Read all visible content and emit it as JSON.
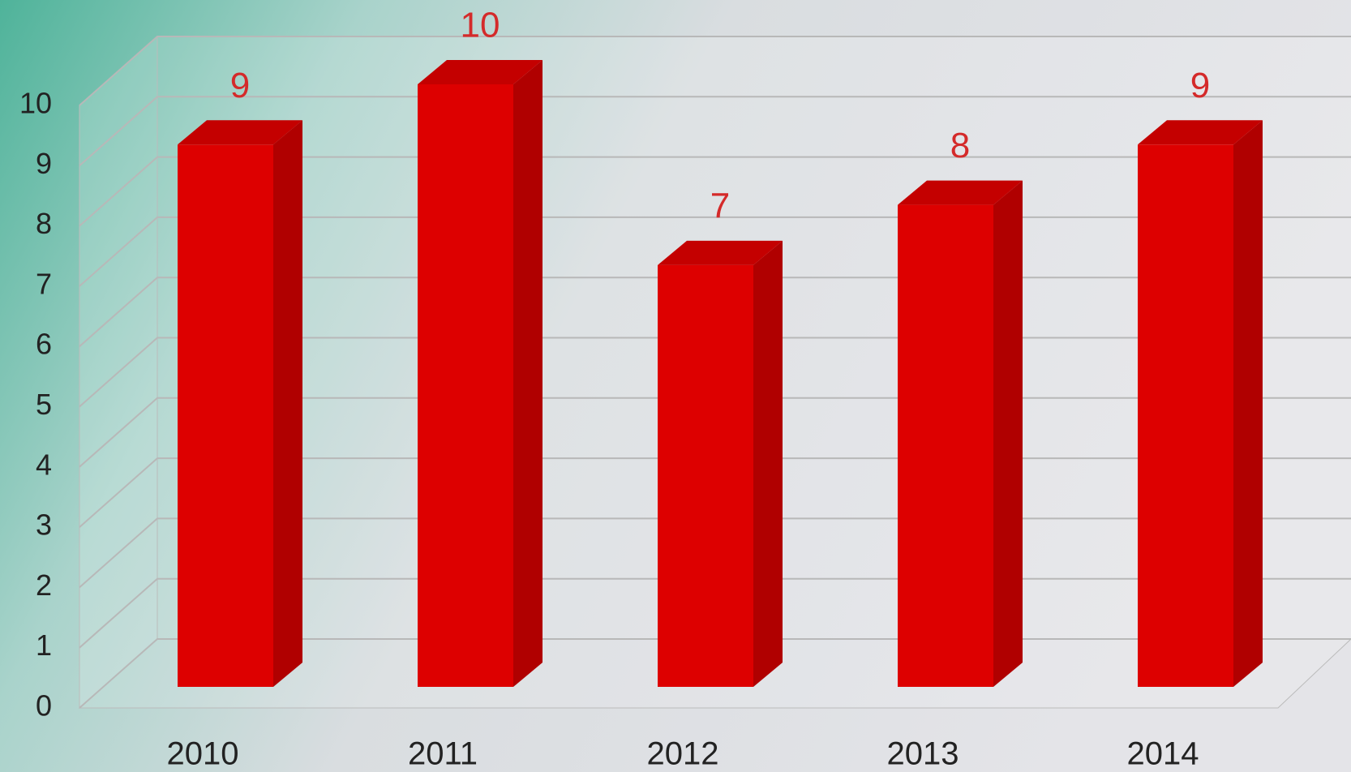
{
  "chart_data": {
    "type": "bar3d",
    "categories": [
      "2010",
      "2011",
      "2012",
      "2013",
      "2014"
    ],
    "values": [
      9,
      10,
      7,
      8,
      9
    ],
    "color": "#dd0000",
    "ylim": [
      0,
      10
    ],
    "yticks": [
      0,
      1,
      2,
      3,
      4,
      5,
      6,
      7,
      8,
      9,
      10
    ],
    "grid": true
  }
}
